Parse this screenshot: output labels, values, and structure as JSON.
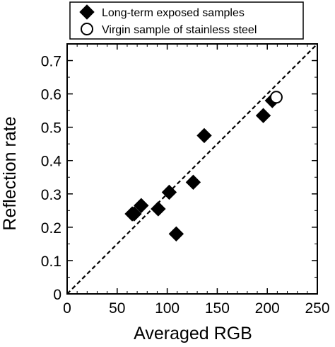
{
  "chart_data": {
    "type": "scatter",
    "title": "",
    "xlabel": "Averaged RGB",
    "ylabel": "Reflection rate",
    "xlim": [
      0,
      250
    ],
    "ylim": [
      0,
      0.75
    ],
    "xticks": [
      0,
      50,
      100,
      150,
      200,
      250
    ],
    "xtick_labels": [
      "0",
      "50",
      "100",
      "150",
      "200",
      "250"
    ],
    "yticks": [
      0,
      0.1,
      0.2,
      0.3,
      0.4,
      0.5,
      0.6,
      0.7
    ],
    "ytick_labels": [
      "0",
      "0.1",
      "0.2",
      "0.3",
      "0.4",
      "0.5",
      "0.6",
      "0.7"
    ],
    "grid": false,
    "legend_position": "top-center",
    "series": [
      {
        "name": "Long-term exposed samples",
        "marker": "diamond-filled",
        "color": "#000000",
        "points": [
          {
            "x": 65,
            "y": 0.24
          },
          {
            "x": 67,
            "y": 0.24
          },
          {
            "x": 74,
            "y": 0.265
          },
          {
            "x": 91,
            "y": 0.255
          },
          {
            "x": 102,
            "y": 0.305
          },
          {
            "x": 109,
            "y": 0.18
          },
          {
            "x": 126,
            "y": 0.335
          },
          {
            "x": 137,
            "y": 0.475
          },
          {
            "x": 196,
            "y": 0.535
          },
          {
            "x": 205,
            "y": 0.58
          }
        ]
      },
      {
        "name": "Virgin sample of stainless steel",
        "marker": "circle-open",
        "color": "#000000",
        "points": [
          {
            "x": 209,
            "y": 0.59
          }
        ]
      }
    ],
    "reference_line": {
      "style": "dashed",
      "from": [
        0,
        0
      ],
      "to": [
        250,
        0.75
      ]
    }
  }
}
